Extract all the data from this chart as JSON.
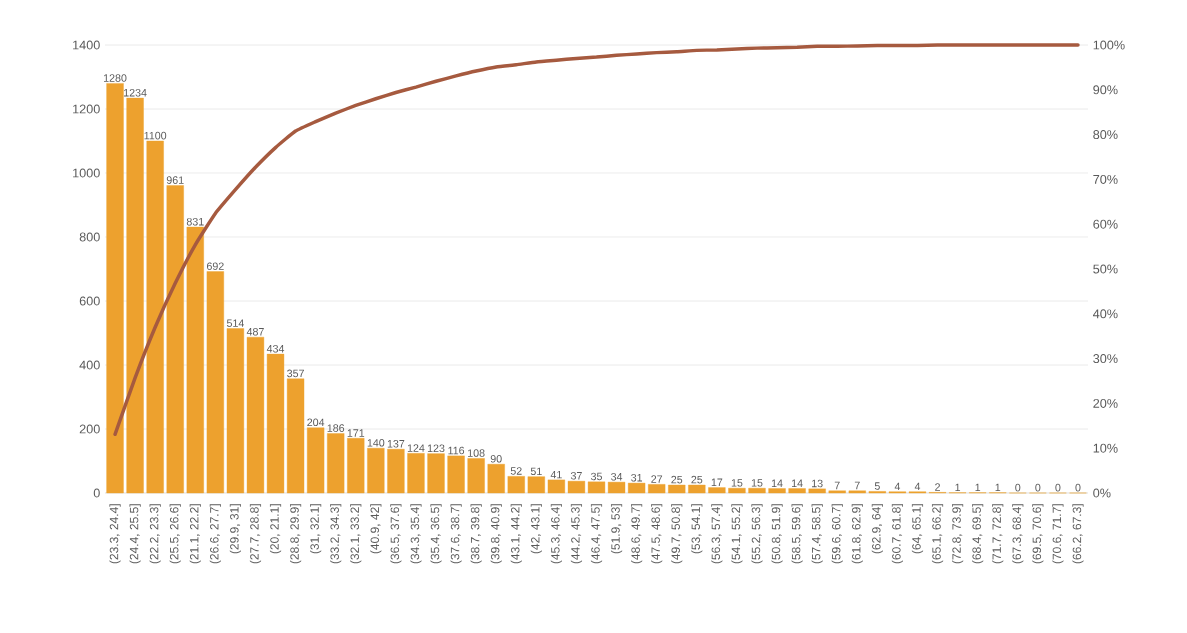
{
  "chart_data": {
    "type": "bar",
    "categories": [
      "(23.3, 24.4]",
      "(24.4, 25.5]",
      "(22.2, 23.3]",
      "(25.5, 26.6]",
      "(21.1, 22.2]",
      "(26.6, 27.7]",
      "(29.9, 31]",
      "(27.7, 28.8]",
      "(20, 21.1]",
      "(28.8, 29.9]",
      "(31, 32.1]",
      "(33.2, 34.3]",
      "(32.1, 33.2]",
      "(40.9, 42]",
      "(36.5, 37.6]",
      "(34.3, 35.4]",
      "(35.4, 36.5]",
      "(37.6, 38.7]",
      "(38.7, 39.8]",
      "(39.8, 40.9]",
      "(43.1, 44.2]",
      "(42, 43.1]",
      "(45.3, 46.4]",
      "(44.2, 45.3]",
      "(46.4, 47.5]",
      "(51.9, 53]",
      "(48.6, 49.7]",
      "(47.5, 48.6]",
      "(49.7, 50.8]",
      "(53, 54.1]",
      "(56.3, 57.4]",
      "(54.1, 55.2]",
      "(55.2, 56.3]",
      "(50.8, 51.9]",
      "(58.5, 59.6]",
      "(57.4, 58.5]",
      "(59.6, 60.7]",
      "(61.8, 62.9]",
      "(62.9, 64]",
      "(60.7, 61.8]",
      "(64, 65.1]",
      "(65.1, 66.2]",
      "(72.8, 73.9]",
      "(68.4, 69.5]",
      "(71.7, 72.8]",
      "(67.3, 68.4]",
      "(69.5, 70.6]",
      "(70.6, 71.7]",
      "(66.2, 67.3]"
    ],
    "series": [
      {
        "color": "#eda12e",
        "values": [
          1280,
          1234,
          1100,
          961,
          831,
          692,
          514,
          487,
          434,
          357,
          204,
          186,
          171,
          140,
          137,
          124,
          123,
          116,
          108,
          90,
          52,
          51,
          41,
          37,
          35,
          34,
          31,
          27,
          25,
          25,
          17,
          15,
          15,
          14,
          14,
          13,
          7,
          7,
          5,
          4,
          4,
          2,
          1,
          1,
          1,
          0,
          0,
          0,
          0
        ],
        "value_labels": [
          "1280",
          "1234",
          "1100",
          "961",
          "831",
          "692",
          "514",
          "487",
          "434",
          "357",
          "204",
          "186",
          "171",
          "140",
          "137",
          "124",
          "123",
          "116",
          "108",
          "90",
          "52",
          "51",
          "41",
          "37",
          "35",
          "34",
          "31",
          "27",
          "25",
          "25",
          "17",
          "15",
          "15",
          "14",
          "14",
          "13",
          "7",
          "7",
          "5",
          "4",
          "4",
          "2",
          "1",
          "1",
          "1",
          "0",
          "0",
          "0",
          "0"
        ]
      },
      {
        "type": "line",
        "axis": "y2",
        "color": "#a65a3f",
        "values": [
          13.1,
          25.7,
          37.0,
          46.8,
          55.4,
          62.4,
          67.7,
          72.7,
          77.1,
          80.8,
          82.9,
          84.8,
          86.5,
          88.0,
          89.4,
          90.6,
          91.9,
          93.1,
          94.2,
          95.1,
          95.6,
          96.2,
          96.6,
          97.0,
          97.3,
          97.7,
          98.0,
          98.3,
          98.5,
          98.8,
          98.9,
          99.1,
          99.3,
          99.4,
          99.5,
          99.7,
          99.7,
          99.8,
          99.9,
          99.9,
          99.9,
          100.0,
          100.0,
          100.0,
          100.0,
          100.0,
          100.0,
          100.0,
          100.0
        ]
      }
    ],
    "ylim": [
      0,
      1400
    ],
    "yticks": [
      0,
      200,
      400,
      600,
      800,
      1000,
      1200,
      1400
    ],
    "y2lim": [
      0,
      100
    ],
    "y2ticks": [
      {
        "value": 0,
        "label": "0%"
      },
      {
        "value": 10,
        "label": "10%"
      },
      {
        "value": 20,
        "label": "20%"
      },
      {
        "value": 30,
        "label": "30%"
      },
      {
        "value": 40,
        "label": "40%"
      },
      {
        "value": 50,
        "label": "50%"
      },
      {
        "value": 60,
        "label": "60%"
      },
      {
        "value": 70,
        "label": "70%"
      },
      {
        "value": 80,
        "label": "80%"
      },
      {
        "value": 90,
        "label": "90%"
      },
      {
        "value": 100,
        "label": "100%"
      }
    ],
    "grid": "y",
    "legend": false
  }
}
